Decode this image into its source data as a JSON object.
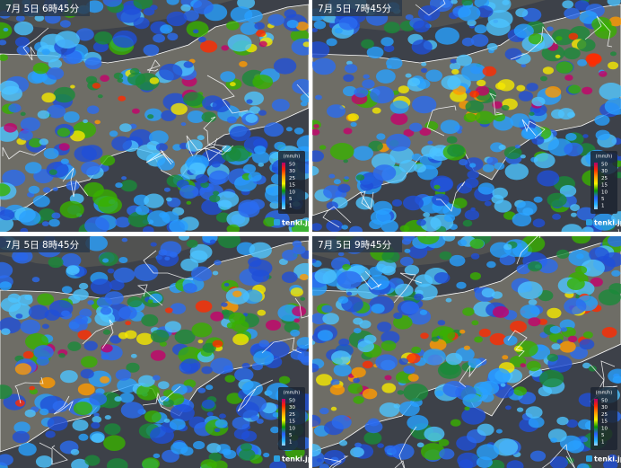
{
  "panels": [
    {
      "time": "7月 5日 6時45分"
    },
    {
      "time": "7月 5日 7時45分"
    },
    {
      "time": "7月 5日 8時45分"
    },
    {
      "time": "7月 5日 9時45分"
    }
  ],
  "legend": {
    "unit": "(mm/h)",
    "levels": [
      50,
      30,
      25,
      15,
      10,
      5,
      1
    ]
  },
  "brand": "tenki.jp"
}
